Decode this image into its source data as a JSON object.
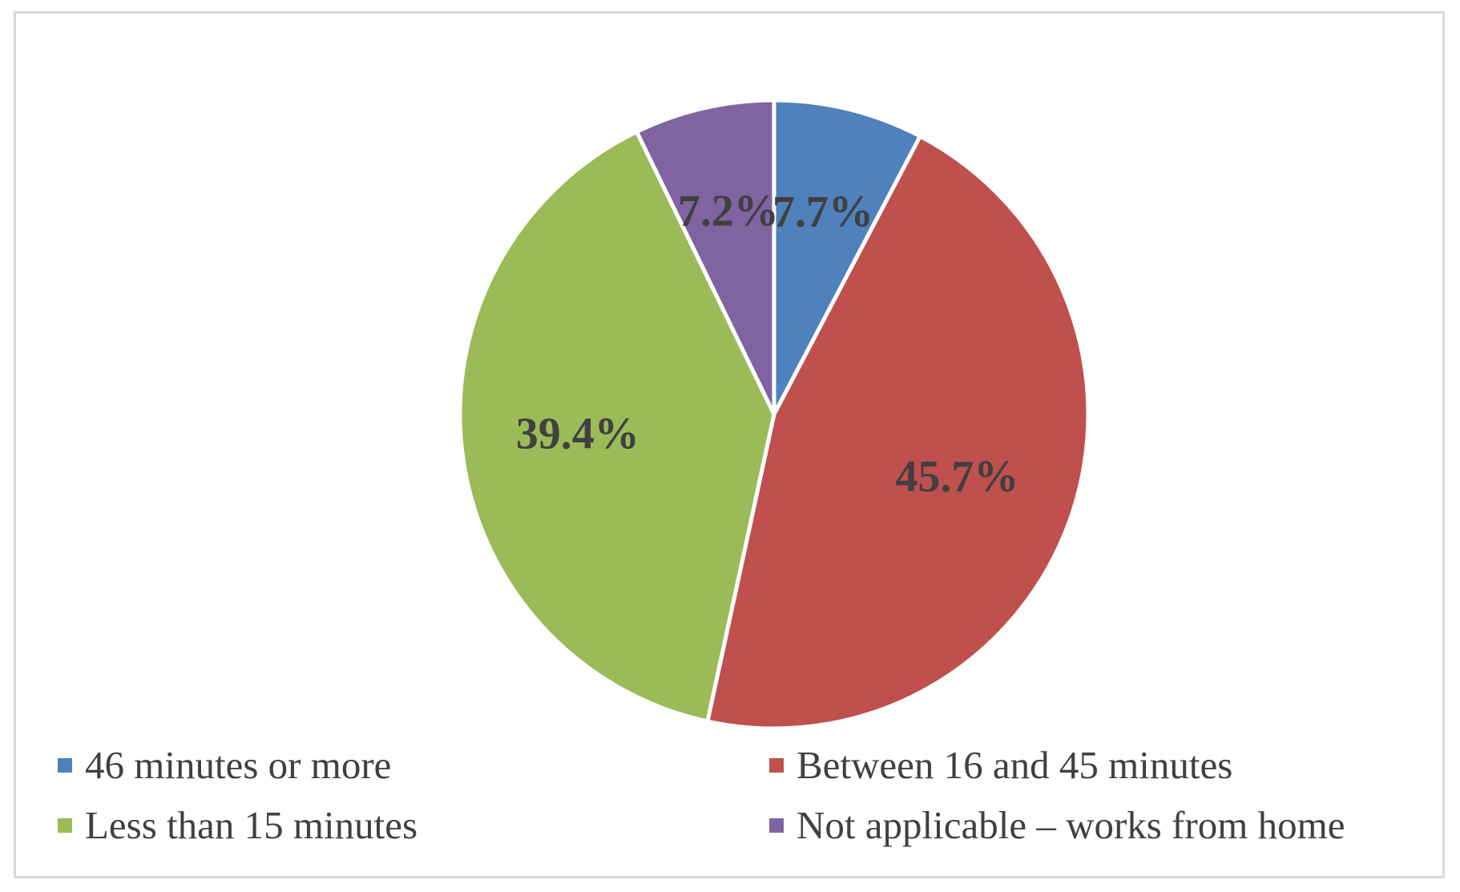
{
  "chart_data": {
    "type": "pie",
    "title": "",
    "legend_position": "bottom",
    "slices": [
      {
        "label": "46 minutes or more",
        "value": 7.7,
        "display": "7.7%",
        "color": "#4F81BD"
      },
      {
        "label": "Between 16 and 45 minutes",
        "value": 45.7,
        "display": "45.7%",
        "color": "#C0504D"
      },
      {
        "label": "Less than 15 minutes",
        "value": 39.4,
        "display": "39.4%",
        "color": "#9BBB59"
      },
      {
        "label": "Not applicable – works from home",
        "value": 7.2,
        "display": "7.2%",
        "color": "#8064A2"
      }
    ]
  }
}
